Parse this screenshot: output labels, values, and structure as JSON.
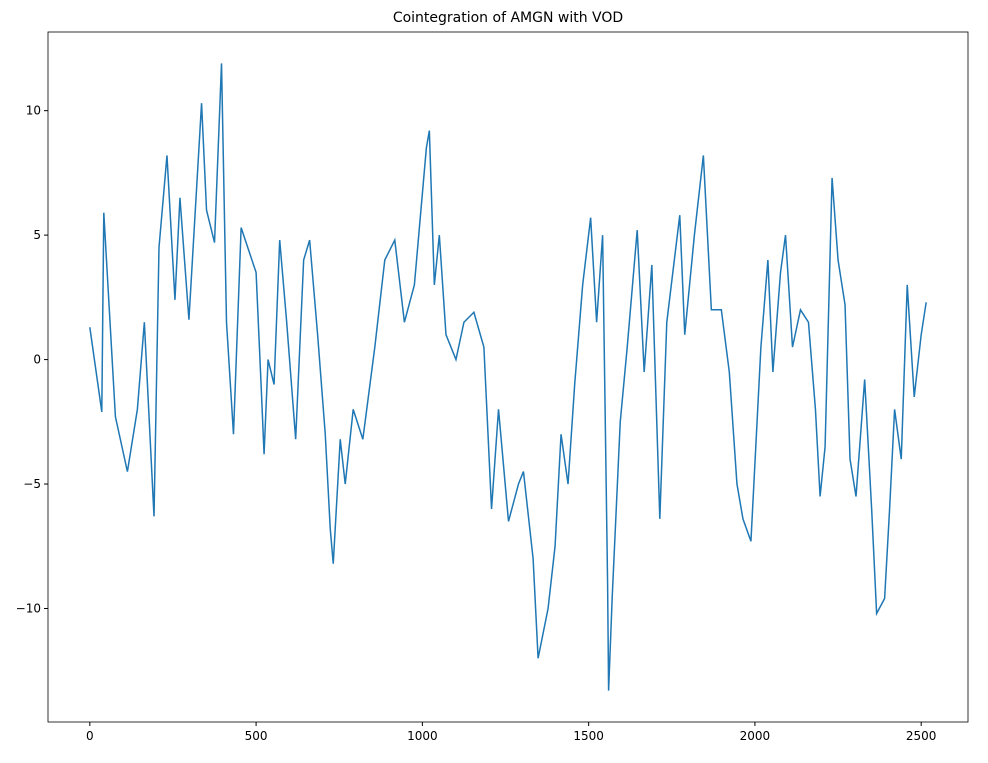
{
  "chart_data": {
    "type": "line",
    "title": "Cointegration of AMGN with VOD",
    "x": [
      0,
      36,
      42,
      77,
      113,
      143,
      164,
      193,
      208,
      232,
      256,
      271,
      298,
      336,
      351,
      375,
      396,
      411,
      432,
      455,
      500,
      515,
      524,
      536,
      554,
      571,
      592,
      619,
      643,
      661,
      685,
      708,
      723,
      732,
      753,
      768,
      792,
      821,
      857,
      887,
      917,
      946,
      976,
      1012,
      1021,
      1036,
      1051,
      1071,
      1101,
      1125,
      1155,
      1185,
      1208,
      1229,
      1259,
      1289,
      1304,
      1333,
      1348,
      1378,
      1399,
      1417,
      1438,
      1458,
      1482,
      1506,
      1524,
      1542,
      1557,
      1560,
      1571,
      1595,
      1616,
      1646,
      1667,
      1690,
      1714,
      1735,
      1774,
      1789,
      1818,
      1845,
      1869,
      1899,
      1923,
      1946,
      1964,
      1988,
      2018,
      2039,
      2054,
      2077,
      2092,
      2113,
      2137,
      2161,
      2182,
      2196,
      2211,
      2232,
      2250,
      2271,
      2286,
      2304,
      2330,
      2351,
      2366,
      2390,
      2405,
      2420,
      2440,
      2458,
      2479,
      2500,
      2515
    ],
    "series": [
      {
        "color": "#1f77b4",
        "values": [
          1.3,
          -2.1,
          5.9,
          -2.3,
          -4.5,
          -2,
          1.5,
          -6.3,
          4.5,
          8.2,
          2.4,
          6.5,
          1.6,
          10.3,
          6,
          4.7,
          11.9,
          1.5,
          -3,
          5.3,
          3.5,
          -1,
          -3.8,
          0,
          -1,
          4.8,
          1.5,
          -3.2,
          4,
          4.8,
          1,
          -3,
          -6.8,
          -8.2,
          -3.2,
          -5,
          -2,
          -3.2,
          0.5,
          4,
          4.8,
          1.5,
          3,
          8.5,
          9.2,
          3,
          5,
          1,
          0,
          1.5,
          1.9,
          0.5,
          -6,
          -2,
          -6.5,
          -5,
          -4.5,
          -8,
          -12,
          -10,
          -7.5,
          -3,
          -5,
          -1,
          3,
          5.7,
          1.5,
          5,
          -9,
          -13.3,
          -9.5,
          -2.5,
          0.5,
          5.2,
          -0.5,
          3.8,
          -6.4,
          1.5,
          5.8,
          1,
          5,
          8.2,
          2,
          2,
          -0.5,
          -5,
          -6.4,
          -7.3,
          0.5,
          4,
          -0.5,
          3.5,
          5,
          0.5,
          2,
          1.5,
          -2,
          -5.5,
          -3.5,
          7.3,
          4,
          2.2,
          -4,
          -5.5,
          -0.8,
          -6,
          -10.2,
          -9.6,
          -6,
          -2,
          -4,
          3,
          -1.5,
          1,
          2.3
        ]
      }
    ],
    "xlim": [
      -125.75,
      2640.75
    ],
    "ylim": [
      -14.56,
      13.16
    ],
    "xticks": [
      0,
      500,
      1000,
      1500,
      2000,
      2500
    ],
    "yticks": [
      {
        "value": -10,
        "label": "−10"
      },
      {
        "value": -5,
        "label": "−5"
      },
      0,
      5,
      10
    ]
  }
}
